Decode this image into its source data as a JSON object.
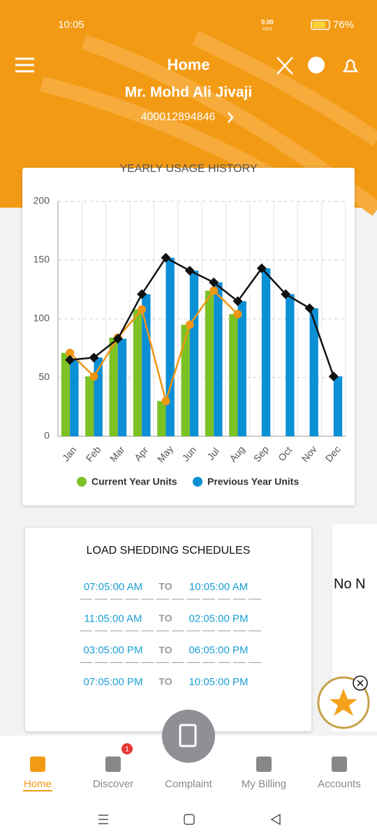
{
  "status_bar": {
    "time": "10:05",
    "net_speed": "0.00",
    "net_unit": "KB/S",
    "battery": "76%"
  },
  "header": {
    "title": "Home",
    "user_name": "Mr. Mohd Ali Jivaji",
    "account_number": "400012894846"
  },
  "chart_data": {
    "type": "bar",
    "title": "YEARLY USAGE HISTORY",
    "categories": [
      "Jan",
      "Feb",
      "Mar",
      "Apr",
      "May",
      "Jun",
      "Jul",
      "Aug",
      "Sep",
      "Oct",
      "Nov",
      "Dec"
    ],
    "series": [
      {
        "name": "Current Year Units",
        "color": "#7cc225",
        "line_color": "#ef9612",
        "marker": "circle",
        "values": [
          71,
          51,
          84,
          108,
          30,
          95,
          124,
          104,
          null,
          null,
          null,
          null
        ]
      },
      {
        "name": "Previous Year Units",
        "color": "#0b8fd5",
        "line_color": "#111111",
        "marker": "diamond",
        "values": [
          65,
          67,
          83,
          121,
          152,
          141,
          131,
          115,
          143,
          121,
          109,
          51
        ]
      }
    ],
    "ylim": [
      0,
      200
    ],
    "yticks": [
      0,
      50,
      100,
      150,
      200
    ],
    "grid": true,
    "legend": "bottom"
  },
  "load_shedding": {
    "title": "LOAD SHEDDING SCHEDULES",
    "separator": "TO",
    "rows": [
      [
        "07:05:00 AM",
        "10:05:00 AM"
      ],
      [
        "11:05:00 AM",
        "02:05:00 PM"
      ],
      [
        "03:05:00 PM",
        "06:05:00 PM"
      ],
      [
        "07:05:00 PM",
        "10:05:00 PM"
      ]
    ]
  },
  "notice_card": {
    "text": "No N"
  },
  "bottom_nav": {
    "items": [
      "Home",
      "Discover",
      "Complaint",
      "My Billing",
      "Accounts"
    ],
    "badge": "1"
  }
}
